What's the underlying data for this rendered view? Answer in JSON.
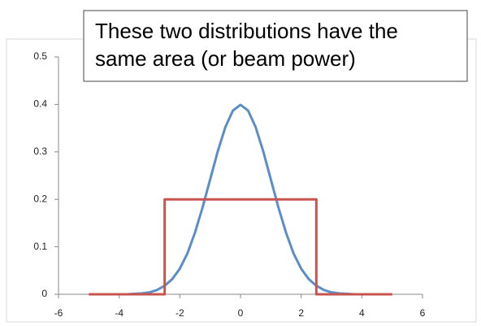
{
  "chart_data": {
    "type": "line",
    "annotation": [
      "These two distributions have the",
      "same area (or beam power)"
    ],
    "series": [
      {
        "color": "#5b8ec6",
        "x": [
          -5,
          -4.75,
          -4.5,
          -4.25,
          -4,
          -3.75,
          -3.5,
          -3.25,
          -3,
          -2.75,
          -2.5,
          -2.25,
          -2,
          -1.75,
          -1.5,
          -1.25,
          -1,
          -0.75,
          -0.5,
          -0.25,
          0,
          0.25,
          0.5,
          0.75,
          1,
          1.25,
          1.5,
          1.75,
          2,
          2.25,
          2.5,
          2.75,
          3,
          3.25,
          3.5,
          3.75,
          4,
          4.25,
          4.5,
          4.75,
          5
        ],
        "values": [
          0,
          0,
          0,
          0,
          0,
          0,
          0.001,
          0.002,
          0.004,
          0.009,
          0.018,
          0.032,
          0.054,
          0.086,
          0.13,
          0.183,
          0.242,
          0.301,
          0.352,
          0.387,
          0.399,
          0.387,
          0.352,
          0.301,
          0.242,
          0.183,
          0.13,
          0.086,
          0.054,
          0.032,
          0.018,
          0.009,
          0.004,
          0.002,
          0.001,
          0,
          0,
          0,
          0,
          0,
          0
        ]
      },
      {
        "color": "#c85450",
        "x": [
          -5,
          -2.5,
          -2.5,
          2.5,
          2.5,
          5
        ],
        "values": [
          0,
          0,
          0.2,
          0.2,
          0,
          0
        ]
      }
    ],
    "xlim": [
      -6,
      6
    ],
    "xticks": [
      -6,
      -4,
      -2,
      0,
      2,
      4,
      6
    ],
    "ylim": [
      0,
      0.5
    ],
    "yticks": [
      0,
      0.1,
      0.2,
      0.3,
      0.4,
      0.5
    ],
    "grid": false
  }
}
